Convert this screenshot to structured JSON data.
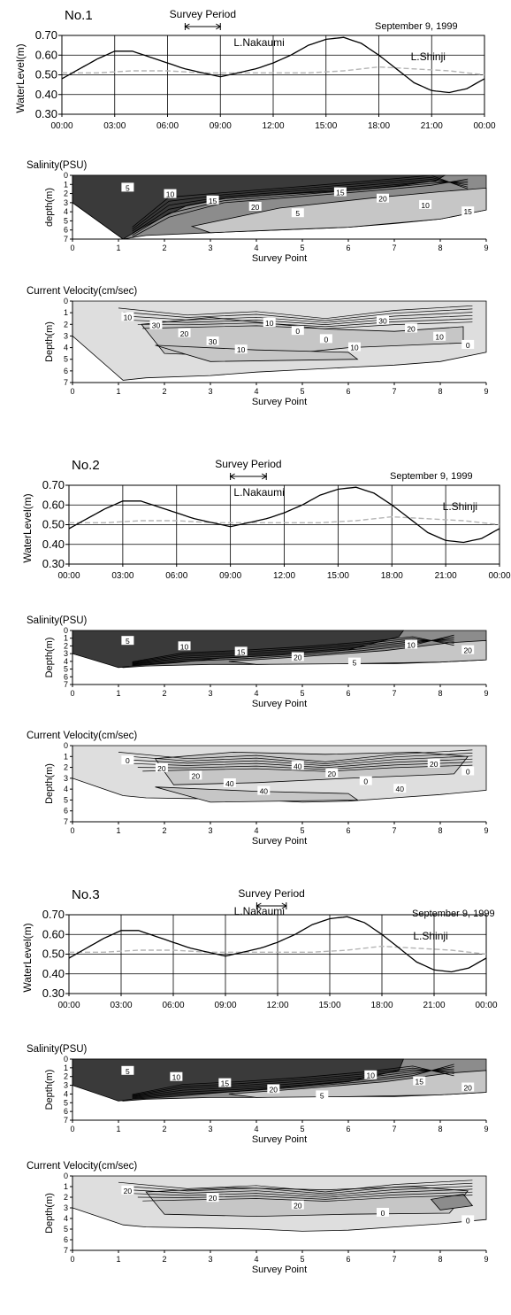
{
  "colors": {
    "dark": "#3a3a3a",
    "mid": "#8c8c8c",
    "light": "#c6c6c6",
    "pale": "#dedede",
    "line": "#000000",
    "shinji": "#b5b5b5"
  },
  "panels": [
    {
      "number": "No.1",
      "survey_label": "Survey Period",
      "date": "September 9, 1999",
      "nakaumi_label": "L.Nakaumi",
      "shinji_label": "L.Shinji",
      "salinity_title": "Salinity(PSU)",
      "velocity_title": "Current Velocity(cm/sec)",
      "sal_ylabel": "depth(m)",
      "vel_ylabel": "Depth(m)"
    },
    {
      "number": "No.2",
      "survey_label": "Survey Period",
      "date": "September 9, 1999",
      "nakaumi_label": "L.Nakaumi",
      "shinji_label": "L.Shinji",
      "salinity_title": "Salinity(PSU)",
      "velocity_title": "Current Velocity(cm/sec)",
      "sal_ylabel": "Depth(m)",
      "vel_ylabel": "Depth(m)"
    },
    {
      "number": "No.3",
      "survey_label": "Survey Period",
      "date": "September 9, 1999",
      "nakaumi_label": "L.Nakaumi",
      "shinji_label": "L.Shinji",
      "salinity_title": "Salinity(PSU)",
      "velocity_title": "Current Velocity(cm/sec)",
      "sal_ylabel": "Depth(m)",
      "vel_ylabel": "Depth(m)"
    }
  ],
  "chart_data": [
    {
      "type": "line",
      "panel": "No.1",
      "ylabel": "WaterLevel(m)",
      "ylim": [
        0.3,
        0.7
      ],
      "yticks": [
        "0.30",
        "0.40",
        "0.50",
        "0.60",
        "0.70"
      ],
      "xticks": [
        "00:00",
        "03:00",
        "06:00",
        "09:00",
        "12:00",
        "15:00",
        "18:00",
        "21:00",
        "00:00"
      ],
      "survey_period": [
        7.0,
        9.0
      ],
      "series": [
        {
          "name": "L.Nakaumi",
          "x": [
            0,
            1,
            2,
            3,
            4,
            5,
            6,
            7,
            8,
            9,
            10,
            11,
            12,
            13,
            14,
            15,
            16,
            17,
            18,
            19,
            20,
            21,
            22,
            23,
            24
          ],
          "y": [
            0.48,
            0.53,
            0.58,
            0.62,
            0.62,
            0.59,
            0.56,
            0.53,
            0.51,
            0.49,
            0.51,
            0.53,
            0.56,
            0.6,
            0.65,
            0.68,
            0.69,
            0.66,
            0.6,
            0.53,
            0.46,
            0.42,
            0.41,
            0.43,
            0.48
          ]
        },
        {
          "name": "L.Shinji",
          "x": [
            0,
            2,
            4,
            6,
            8,
            10,
            12,
            14,
            16,
            18,
            20,
            22,
            24
          ],
          "y": [
            0.51,
            0.51,
            0.52,
            0.52,
            0.51,
            0.51,
            0.51,
            0.51,
            0.52,
            0.54,
            0.53,
            0.52,
            0.5
          ]
        }
      ]
    },
    {
      "type": "heatmap",
      "panel": "No.1",
      "title": "Salinity(PSU)",
      "xlabel": "Survey Point",
      "ylabel": "depth(m)",
      "xticks": [
        "0",
        "1",
        "2",
        "3",
        "4",
        "5",
        "6",
        "7",
        "8",
        "9"
      ],
      "yticks": [
        "0",
        "1",
        "2",
        "3",
        "4",
        "5",
        "6",
        "7"
      ],
      "contour_labels": [
        "5",
        "10",
        "15",
        "20",
        "5",
        "15",
        "20",
        "10",
        "15"
      ]
    },
    {
      "type": "heatmap",
      "panel": "No.1",
      "title": "Current Velocity(cm/sec)",
      "xlabel": "Survey Point",
      "ylabel": "Depth(m)",
      "xticks": [
        "0",
        "1",
        "2",
        "3",
        "4",
        "5",
        "6",
        "7",
        "8",
        "9"
      ],
      "yticks": [
        "0",
        "1",
        "2",
        "3",
        "4",
        "5",
        "6",
        "7"
      ],
      "contour_labels": [
        "10",
        "30",
        "20",
        "30",
        "10",
        "10",
        "0",
        "0",
        "10",
        "30",
        "20",
        "10",
        "0"
      ]
    },
    {
      "type": "line",
      "panel": "No.2",
      "ylabel": "WaterLevel(m)",
      "ylim": [
        0.3,
        0.7
      ],
      "yticks": [
        "0.30",
        "0.40",
        "0.50",
        "0.60",
        "0.70"
      ],
      "xticks": [
        "00:00",
        "03:00",
        "06:00",
        "09:00",
        "12:00",
        "15:00",
        "18:00",
        "21:00",
        "00:00"
      ],
      "survey_period": [
        9.0,
        11.0
      ],
      "series": [
        {
          "name": "L.Nakaumi",
          "x": [
            0,
            1,
            2,
            3,
            4,
            5,
            6,
            7,
            8,
            9,
            10,
            11,
            12,
            13,
            14,
            15,
            16,
            17,
            18,
            19,
            20,
            21,
            22,
            23,
            24
          ],
          "y": [
            0.48,
            0.53,
            0.58,
            0.62,
            0.62,
            0.59,
            0.56,
            0.53,
            0.51,
            0.49,
            0.51,
            0.53,
            0.56,
            0.6,
            0.65,
            0.68,
            0.69,
            0.66,
            0.6,
            0.53,
            0.46,
            0.42,
            0.41,
            0.43,
            0.48
          ]
        },
        {
          "name": "L.Shinji",
          "x": [
            0,
            2,
            4,
            6,
            8,
            10,
            12,
            14,
            16,
            18,
            20,
            22,
            24
          ],
          "y": [
            0.51,
            0.51,
            0.52,
            0.52,
            0.51,
            0.51,
            0.51,
            0.51,
            0.52,
            0.54,
            0.53,
            0.52,
            0.5
          ]
        }
      ]
    },
    {
      "type": "heatmap",
      "panel": "No.2",
      "title": "Salinity(PSU)",
      "xlabel": "Survey Point",
      "ylabel": "Depth(m)",
      "xticks": [
        "0",
        "1",
        "2",
        "3",
        "4",
        "5",
        "6",
        "7",
        "8",
        "9"
      ],
      "yticks": [
        "0",
        "1",
        "2",
        "3",
        "4",
        "5",
        "6",
        "7"
      ],
      "contour_labels": [
        "5",
        "10",
        "15",
        "20",
        "5",
        "10",
        "20"
      ]
    },
    {
      "type": "heatmap",
      "panel": "No.2",
      "title": "Current Velocity(cm/sec)",
      "xlabel": "Survey Point",
      "ylabel": "Depth(m)",
      "xticks": [
        "0",
        "1",
        "2",
        "3",
        "4",
        "5",
        "6",
        "7",
        "8",
        "9"
      ],
      "yticks": [
        "0",
        "1",
        "2",
        "3",
        "4",
        "5",
        "6",
        "7"
      ],
      "contour_labels": [
        "0",
        "20",
        "20",
        "40",
        "40",
        "40",
        "20",
        "0",
        "40",
        "20",
        "0"
      ]
    },
    {
      "type": "line",
      "panel": "No.3",
      "ylabel": "WaterLevel(m)",
      "ylim": [
        0.3,
        0.7
      ],
      "yticks": [
        "0.30",
        "0.40",
        "0.50",
        "0.60",
        "0.70"
      ],
      "xticks": [
        "00:00",
        "03:00",
        "06:00",
        "09:00",
        "12:00",
        "15:00",
        "18:00",
        "21:00",
        "00:00"
      ],
      "survey_period": [
        10.8,
        12.5
      ],
      "series": [
        {
          "name": "L.Nakaumi",
          "x": [
            0,
            1,
            2,
            3,
            4,
            5,
            6,
            7,
            8,
            9,
            10,
            11,
            12,
            13,
            14,
            15,
            16,
            17,
            18,
            19,
            20,
            21,
            22,
            23,
            24
          ],
          "y": [
            0.48,
            0.53,
            0.58,
            0.62,
            0.62,
            0.59,
            0.56,
            0.53,
            0.51,
            0.49,
            0.51,
            0.53,
            0.56,
            0.6,
            0.65,
            0.68,
            0.69,
            0.66,
            0.6,
            0.53,
            0.46,
            0.42,
            0.41,
            0.43,
            0.48
          ]
        },
        {
          "name": "L.Shinji",
          "x": [
            0,
            2,
            4,
            6,
            8,
            10,
            12,
            14,
            16,
            18,
            20,
            22,
            24
          ],
          "y": [
            0.51,
            0.51,
            0.52,
            0.52,
            0.51,
            0.51,
            0.51,
            0.51,
            0.52,
            0.54,
            0.53,
            0.52,
            0.5
          ]
        }
      ]
    },
    {
      "type": "heatmap",
      "panel": "No.3",
      "title": "Salinity(PSU)",
      "xlabel": "Survey Point",
      "ylabel": "Depth(m)",
      "xticks": [
        "0",
        "1",
        "2",
        "3",
        "4",
        "5",
        "6",
        "7",
        "8",
        "9"
      ],
      "yticks": [
        "0",
        "1",
        "2",
        "3",
        "4",
        "5",
        "6",
        "7"
      ],
      "contour_labels": [
        "5",
        "10",
        "15",
        "20",
        "5",
        "10",
        "15",
        "20"
      ]
    },
    {
      "type": "heatmap",
      "panel": "No.3",
      "title": "Current Velocity(cm/sec)",
      "xlabel": "Survey Point",
      "ylabel": "Depth(m)",
      "xticks": [
        "0",
        "1",
        "2",
        "3",
        "4",
        "5",
        "6",
        "7",
        "8",
        "9"
      ],
      "yticks": [
        "0",
        "1",
        "2",
        "3",
        "4",
        "5",
        "6",
        "7"
      ],
      "contour_labels": [
        "20",
        "20",
        "20",
        "0",
        "0"
      ]
    }
  ]
}
